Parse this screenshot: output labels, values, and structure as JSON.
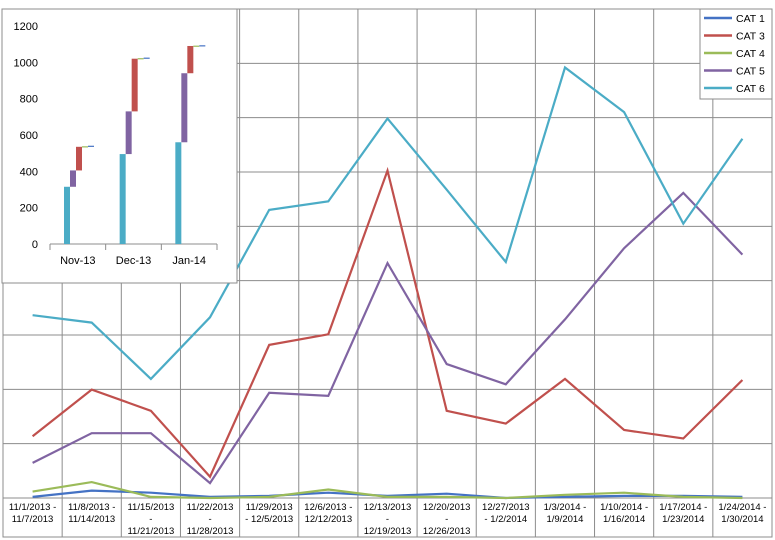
{
  "chart_data": [
    {
      "type": "line",
      "title": "",
      "xlabel": "",
      "ylabel": "",
      "grid": true,
      "legend": "top-right",
      "categories": [
        [
          "11/1/2013 -",
          "11/7/2013"
        ],
        [
          "11/8/2013 -",
          "11/14/2013"
        ],
        [
          "11/15/2013",
          "-",
          "11/21/2013"
        ],
        [
          "11/22/2013",
          "-",
          "11/28/2013"
        ],
        [
          "11/29/2013",
          "- 12/5/2013"
        ],
        [
          "12/6/2013 -",
          "12/12/2013"
        ],
        [
          "12/13/2013",
          "-",
          "12/19/2013"
        ],
        [
          "12/20/2013",
          "-",
          "12/26/2013"
        ],
        [
          "12/27/2013",
          "- 1/2/2014"
        ],
        [
          "1/3/2014 -",
          "1/9/2014"
        ],
        [
          "1/10/2014 -",
          "1/16/2014"
        ],
        [
          "1/17/2014 -",
          "1/23/2014"
        ],
        [
          "1/24/2014 -",
          "1/30/2014"
        ]
      ],
      "ylim": [
        0,
        460
      ],
      "series": [
        {
          "name": "CAT 1",
          "color": "#4472C4",
          "values": [
            1,
            7,
            5,
            1,
            2,
            5,
            2,
            4,
            0,
            1,
            2,
            2,
            1
          ]
        },
        {
          "name": "CAT 3",
          "color": "#C0504D",
          "values": [
            58,
            102,
            82,
            20,
            144,
            154,
            308,
            82,
            70,
            112,
            64,
            56,
            111
          ]
        },
        {
          "name": "CAT 4",
          "color": "#9BBB59",
          "values": [
            6,
            15,
            1,
            0,
            1,
            8,
            1,
            1,
            0,
            3,
            5,
            1,
            0
          ]
        },
        {
          "name": "CAT 5",
          "color": "#8064A2",
          "values": [
            33,
            61,
            61,
            14,
            99,
            96,
            221,
            126,
            107,
            168,
            235,
            287,
            229
          ]
        },
        {
          "name": "CAT 6",
          "color": "#4BACC6",
          "values": [
            172,
            165,
            112,
            170,
            271,
            279,
            357,
            290,
            222,
            405,
            363,
            258,
            338
          ]
        }
      ]
    },
    {
      "type": "bar",
      "title": "",
      "xlabel": "",
      "ylabel": "",
      "grid": false,
      "categories": [
        "Nov-13",
        "Dec-13",
        "Jan-14"
      ],
      "ylim": [
        0,
        1200
      ],
      "yticks": [
        0,
        200,
        400,
        600,
        800,
        1000,
        1200
      ],
      "series": [
        {
          "name": "CAT 6",
          "color": "#4BACC6",
          "values": [
            315,
            495,
            560
          ]
        },
        {
          "name": "CAT 5",
          "color": "#8064A2",
          "values": [
            90,
            235,
            380
          ]
        },
        {
          "name": "CAT 3",
          "color": "#C0504D",
          "values": [
            130,
            290,
            150
          ]
        },
        {
          "name": "CAT 4",
          "color": "#9BBB59",
          "values": [
            3,
            3,
            2
          ]
        },
        {
          "name": "CAT 1",
          "color": "#4472C4",
          "values": [
            3,
            3,
            2
          ]
        }
      ]
    }
  ]
}
